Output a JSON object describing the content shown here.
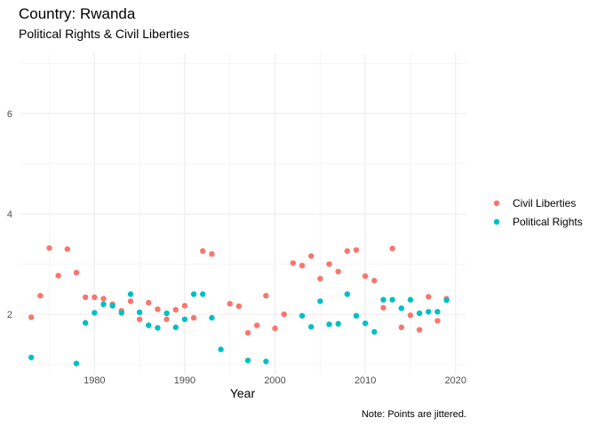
{
  "chart_data": {
    "type": "scatter",
    "title": "Country: Rwanda",
    "subtitle": "Political Rights & Civil Liberties",
    "xlabel": "Year",
    "ylabel": "",
    "caption": "Note: Points are jittered.",
    "xlim": [
      1971.8,
      2021.2
    ],
    "ylim": [
      0.8,
      7.2
    ],
    "xticks": [
      1980,
      1990,
      2000,
      2010,
      2020
    ],
    "xtick_labels": [
      "1980",
      "1990",
      "2000",
      "2010",
      "2020"
    ],
    "yticks": [
      2,
      4,
      6
    ],
    "ytick_labels": [
      "2",
      "4",
      "6"
    ],
    "grid": true,
    "legend_position": "right",
    "series": [
      {
        "name": "Civil Liberties",
        "color": "#F8766D",
        "points": [
          [
            1973,
            1.94
          ],
          [
            1974,
            2.37
          ],
          [
            1975,
            3.32
          ],
          [
            1976,
            2.77
          ],
          [
            1977,
            3.3
          ],
          [
            1978,
            2.83
          ],
          [
            1979,
            2.34
          ],
          [
            1980,
            2.34
          ],
          [
            1981,
            2.31
          ],
          [
            1982,
            2.2
          ],
          [
            1983,
            2.07
          ],
          [
            1984,
            2.26
          ],
          [
            1985,
            1.9
          ],
          [
            1986,
            2.23
          ],
          [
            1987,
            2.1
          ],
          [
            1988,
            1.9
          ],
          [
            1989,
            2.09
          ],
          [
            1990,
            2.17
          ],
          [
            1991,
            1.93
          ],
          [
            1992,
            3.26
          ],
          [
            1993,
            3.2
          ],
          [
            1995,
            2.21
          ],
          [
            1996,
            2.16
          ],
          [
            1997,
            1.63
          ],
          [
            1998,
            1.78
          ],
          [
            1999,
            2.37
          ],
          [
            2000,
            1.72
          ],
          [
            2001,
            2.0
          ],
          [
            2002,
            3.02
          ],
          [
            2003,
            2.97
          ],
          [
            2004,
            3.16
          ],
          [
            2005,
            2.71
          ],
          [
            2006,
            3.0
          ],
          [
            2007,
            2.85
          ],
          [
            2008,
            3.26
          ],
          [
            2009,
            3.28
          ],
          [
            2010,
            2.76
          ],
          [
            2011,
            2.67
          ],
          [
            2012,
            2.13
          ],
          [
            2013,
            3.31
          ],
          [
            2014,
            1.74
          ],
          [
            2015,
            1.98
          ],
          [
            2016,
            1.69
          ],
          [
            2017,
            2.35
          ],
          [
            2018,
            1.87
          ],
          [
            2019,
            2.31
          ]
        ]
      },
      {
        "name": "Political Rights",
        "color": "#00BFC4",
        "points": [
          [
            1973,
            1.14
          ],
          [
            1978,
            1.02
          ],
          [
            1979,
            1.83
          ],
          [
            1980,
            2.03
          ],
          [
            1981,
            2.2
          ],
          [
            1982,
            2.17
          ],
          [
            1983,
            2.03
          ],
          [
            1984,
            2.4
          ],
          [
            1985,
            2.04
          ],
          [
            1986,
            1.78
          ],
          [
            1987,
            1.73
          ],
          [
            1988,
            2.02
          ],
          [
            1989,
            1.74
          ],
          [
            1990,
            1.9
          ],
          [
            1991,
            2.4
          ],
          [
            1992,
            2.4
          ],
          [
            1993,
            1.93
          ],
          [
            1994,
            1.3
          ],
          [
            1997,
            1.08
          ],
          [
            1999,
            1.06
          ],
          [
            2003,
            1.97
          ],
          [
            2004,
            1.75
          ],
          [
            2005,
            2.26
          ],
          [
            2006,
            1.8
          ],
          [
            2007,
            1.81
          ],
          [
            2008,
            2.4
          ],
          [
            2009,
            1.97
          ],
          [
            2010,
            1.82
          ],
          [
            2011,
            1.65
          ],
          [
            2012,
            2.29
          ],
          [
            2013,
            2.29
          ],
          [
            2014,
            2.12
          ],
          [
            2015,
            2.29
          ],
          [
            2016,
            2.02
          ],
          [
            2017,
            2.05
          ],
          [
            2018,
            2.05
          ],
          [
            2019,
            2.28
          ]
        ]
      }
    ]
  }
}
